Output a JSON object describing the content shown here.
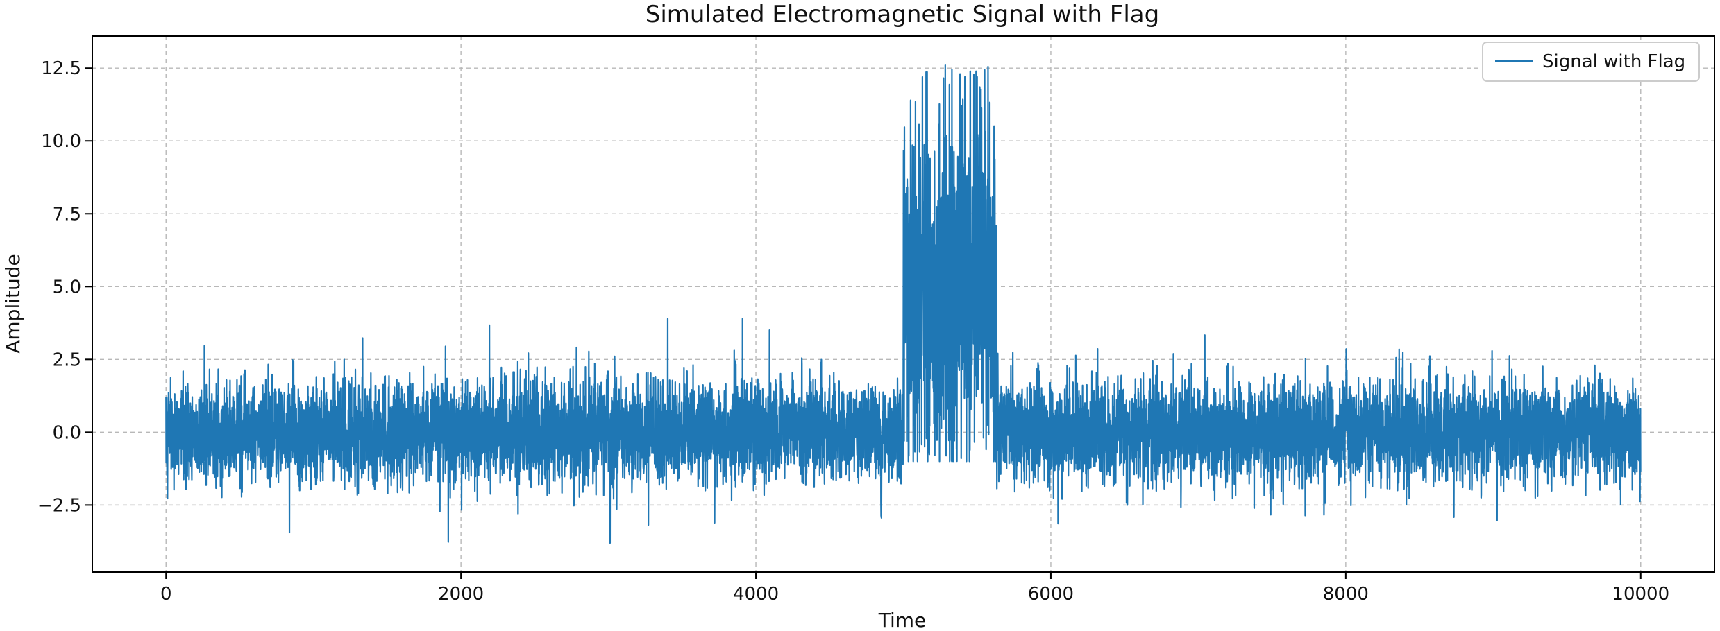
{
  "chart_data": {
    "type": "line",
    "title": "Simulated Electromagnetic Signal with Flag",
    "xlabel": "Time",
    "ylabel": "Amplitude",
    "xlim": [
      -500,
      10500
    ],
    "ylim": [
      -4.8,
      13.6
    ],
    "x_ticks": [
      0,
      2000,
      4000,
      6000,
      8000,
      10000
    ],
    "x_tick_labels": [
      "0",
      "2000",
      "4000",
      "6000",
      "8000",
      "10000"
    ],
    "y_ticks": [
      -2.5,
      0.0,
      2.5,
      5.0,
      7.5,
      10.0,
      12.5
    ],
    "y_tick_labels": [
      "−2.5",
      "0.0",
      "2.5",
      "5.0",
      "7.5",
      "10.0",
      "12.5"
    ],
    "grid": true,
    "legend_position": "top-right",
    "series": [
      {
        "name": "Signal with Flag",
        "color": "#1f77b4",
        "x_range": [
          0,
          9999
        ],
        "baseline_range": [
          -3.8,
          3.9
        ],
        "flag_region": [
          5000,
          5630
        ],
        "flag_range": [
          -1.0,
          12.6
        ]
      }
    ]
  }
}
